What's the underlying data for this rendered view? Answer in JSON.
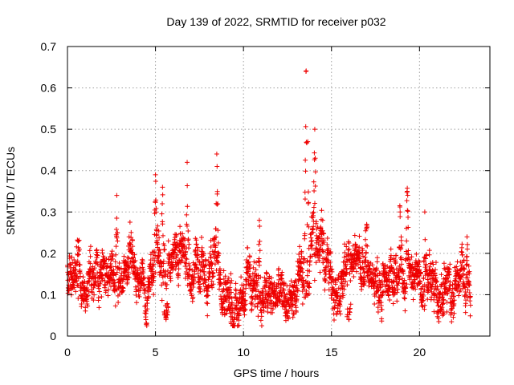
{
  "chart_data": {
    "type": "scatter",
    "title": "Day 139 of 2022, SRMTID for receiver p032",
    "xlabel": "GPS time / hours",
    "ylabel": "SRMTID / TECUs",
    "xlim": [
      0,
      24
    ],
    "ylim": [
      0,
      0.7
    ],
    "xticks": [
      0,
      5,
      10,
      15,
      20
    ],
    "yticks": [
      0,
      0.1,
      0.2,
      0.3,
      0.4,
      0.5,
      0.6,
      0.7
    ],
    "xtick_labels": [
      "0",
      "5",
      "10",
      "15",
      "20"
    ],
    "ytick_labels": [
      "0",
      "0.1",
      "0.2",
      "0.3",
      "0.4",
      "0.5",
      "0.6",
      "0.7"
    ],
    "grid": true,
    "marker": "+",
    "color": "#ee0000",
    "x_coverage": [
      0,
      22.9
    ],
    "sample_interval_hours": 0.0083,
    "baseline_envelope": [
      [
        0.0,
        0.14
      ],
      [
        0.5,
        0.15
      ],
      [
        1.0,
        0.12
      ],
      [
        1.5,
        0.16
      ],
      [
        2.0,
        0.15
      ],
      [
        2.5,
        0.15
      ],
      [
        3.0,
        0.14
      ],
      [
        3.5,
        0.16
      ],
      [
        4.0,
        0.13
      ],
      [
        4.5,
        0.12
      ],
      [
        5.0,
        0.2
      ],
      [
        5.5,
        0.15
      ],
      [
        6.0,
        0.18
      ],
      [
        6.5,
        0.22
      ],
      [
        7.0,
        0.15
      ],
      [
        7.5,
        0.14
      ],
      [
        8.0,
        0.16
      ],
      [
        8.5,
        0.18
      ],
      [
        9.0,
        0.12
      ],
      [
        9.5,
        0.08
      ],
      [
        10.0,
        0.11
      ],
      [
        10.5,
        0.13
      ],
      [
        11.0,
        0.1
      ],
      [
        11.5,
        0.09
      ],
      [
        12.0,
        0.1
      ],
      [
        12.5,
        0.08
      ],
      [
        13.0,
        0.1
      ],
      [
        13.5,
        0.15
      ],
      [
        14.0,
        0.2
      ],
      [
        14.5,
        0.22
      ],
      [
        15.0,
        0.14
      ],
      [
        15.5,
        0.13
      ],
      [
        16.0,
        0.16
      ],
      [
        16.5,
        0.18
      ],
      [
        17.0,
        0.15
      ],
      [
        17.5,
        0.13
      ],
      [
        18.0,
        0.12
      ],
      [
        18.5,
        0.14
      ],
      [
        19.0,
        0.16
      ],
      [
        19.5,
        0.13
      ],
      [
        20.0,
        0.15
      ],
      [
        20.5,
        0.14
      ],
      [
        21.0,
        0.12
      ],
      [
        21.5,
        0.11
      ],
      [
        22.0,
        0.12
      ],
      [
        22.5,
        0.14
      ],
      [
        22.9,
        0.13
      ]
    ],
    "peaks": [
      {
        "x": 0.6,
        "y": 0.23
      },
      {
        "x": 2.8,
        "y": 0.34
      },
      {
        "x": 3.5,
        "y": 0.24
      },
      {
        "x": 5.0,
        "y": 0.39
      },
      {
        "x": 5.4,
        "y": 0.36
      },
      {
        "x": 6.8,
        "y": 0.42
      },
      {
        "x": 8.5,
        "y": 0.41
      },
      {
        "x": 10.9,
        "y": 0.28
      },
      {
        "x": 13.55,
        "y": 0.64
      },
      {
        "x": 13.65,
        "y": 0.47
      },
      {
        "x": 14.05,
        "y": 0.5
      },
      {
        "x": 14.5,
        "y": 0.28
      },
      {
        "x": 17.0,
        "y": 0.27
      },
      {
        "x": 18.9,
        "y": 0.3
      },
      {
        "x": 19.3,
        "y": 0.35
      },
      {
        "x": 20.3,
        "y": 0.3
      },
      {
        "x": 22.7,
        "y": 0.24
      }
    ],
    "minima": [
      {
        "x": 5.6,
        "y": 0.04
      },
      {
        "x": 9.3,
        "y": 0.03
      },
      {
        "x": 16.0,
        "y": 0.04
      },
      {
        "x": 21.3,
        "y": 0.05
      }
    ]
  }
}
